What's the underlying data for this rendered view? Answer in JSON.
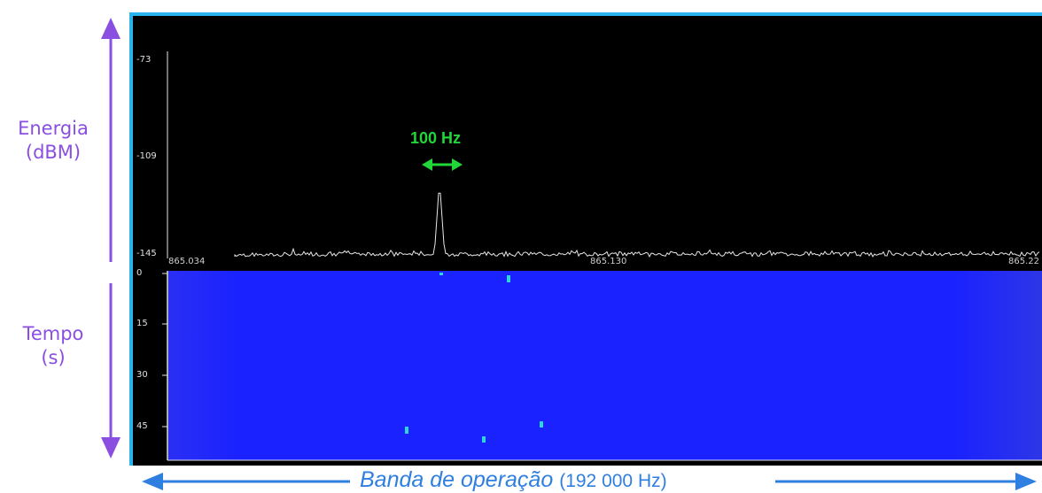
{
  "labels": {
    "energy_line1": "Energia",
    "energy_line2": "(dBM)",
    "time_line1": "Tempo",
    "time_line2": "(s)",
    "band_main": "Banda de operação",
    "band_detail": "(192 000 Hz)",
    "bandwidth": "100 Hz"
  },
  "spectrum": {
    "y_ticks": [
      "-73",
      "-109",
      "-145"
    ],
    "x_ticks": [
      "865.034",
      "865.130",
      "865.22"
    ]
  },
  "waterfall": {
    "y_ticks": [
      "0",
      "15",
      "30",
      "45"
    ]
  },
  "colors": {
    "accent_purple": "#8a4fe0",
    "frame_blue": "#2ab4ee",
    "band_blue": "#2f7fe0",
    "bandwidth_green": "#22d63a",
    "waterfall_blue": "#1a22ff",
    "signal_cyan": "#2fd6d6"
  }
}
